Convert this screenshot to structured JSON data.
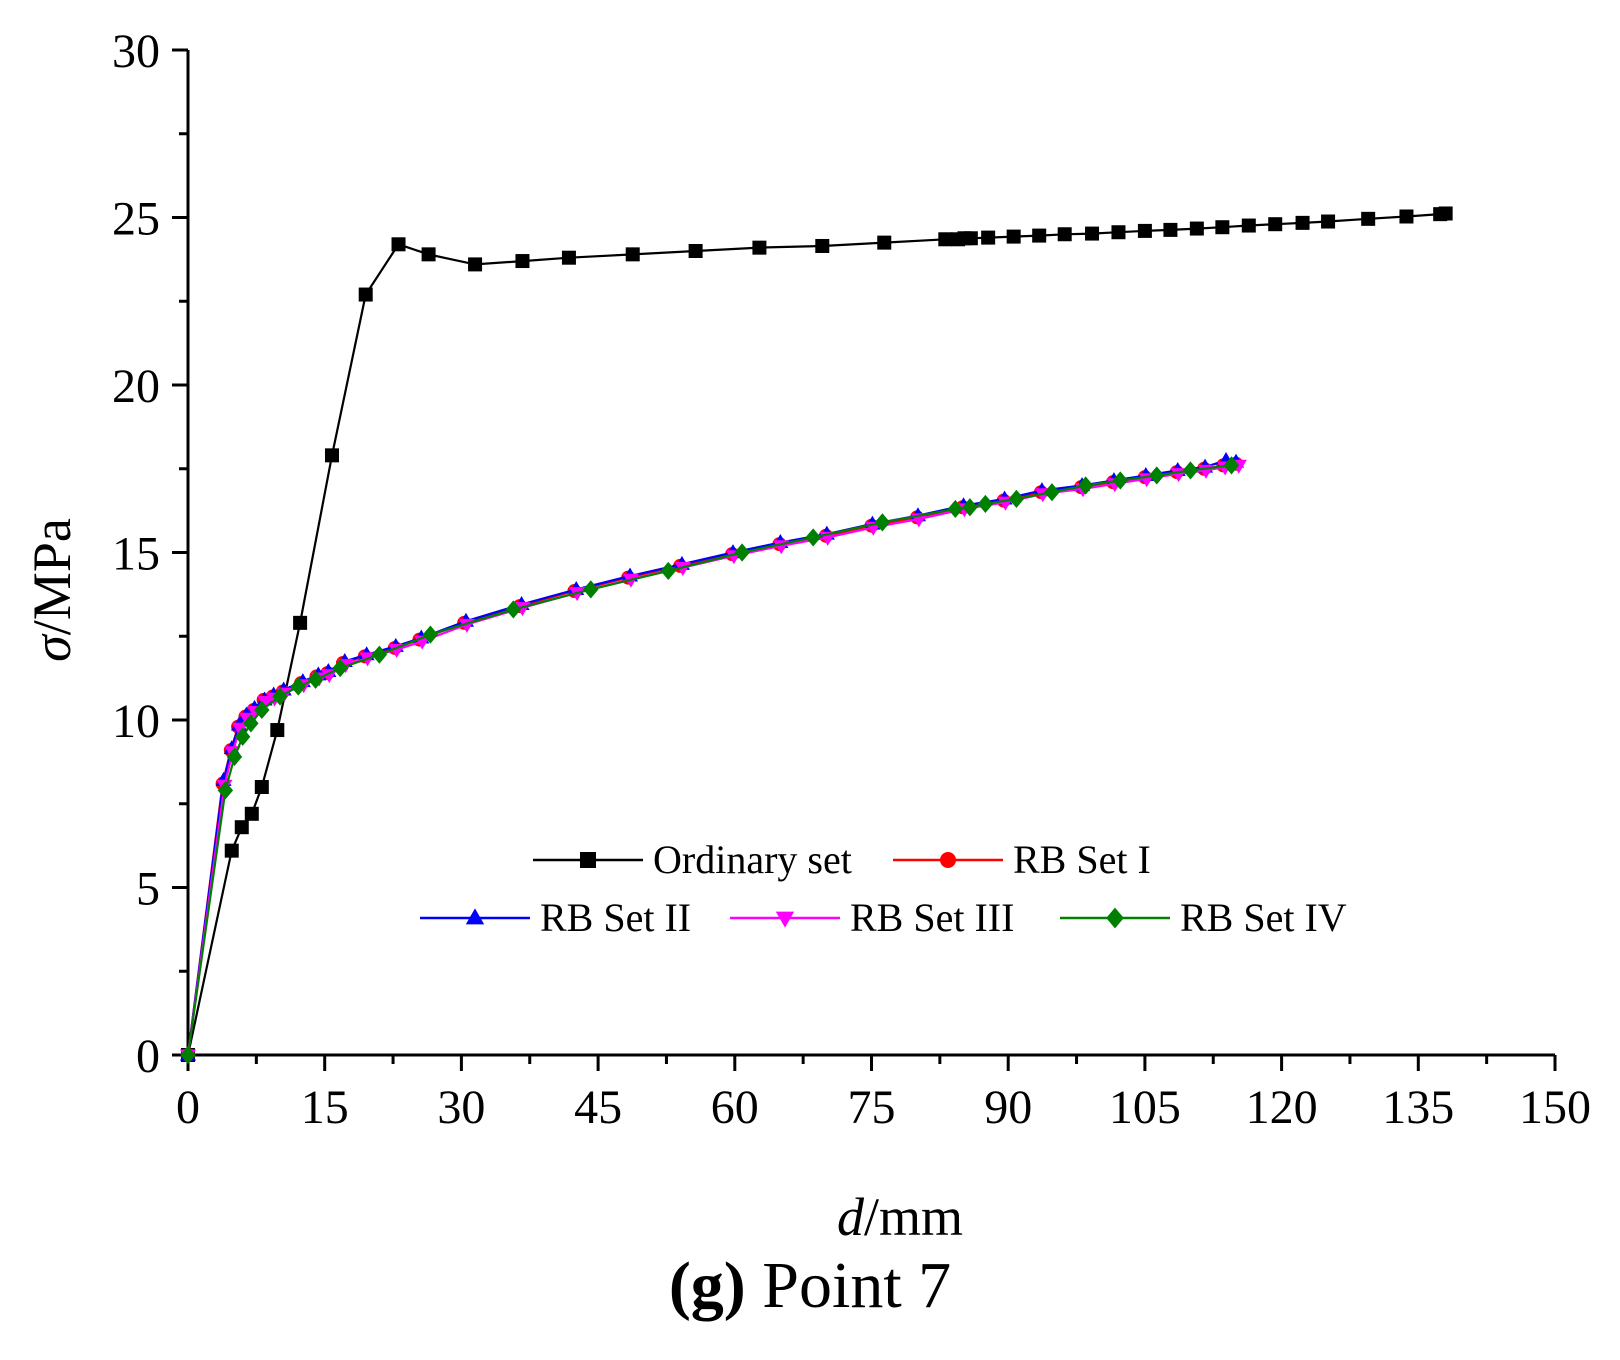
{
  "chart_data": {
    "type": "line",
    "title": "",
    "xlabel_italic": "d",
    "xlabel_unit": "/mm",
    "ylabel_italic": "σ",
    "ylabel_unit": "/MPa",
    "xlim": [
      0,
      150
    ],
    "ylim": [
      0,
      30
    ],
    "x_ticks": [
      0,
      15,
      30,
      45,
      60,
      75,
      90,
      105,
      120,
      135,
      150
    ],
    "y_ticks": [
      0,
      5,
      10,
      15,
      20,
      25,
      30
    ],
    "grid": false,
    "legend_position": "lower-right",
    "series": [
      {
        "name": "Ordinary set",
        "color": "#000000",
        "marker": "square",
        "x": [
          0,
          4.8,
          5.9,
          7.0,
          8.1,
          9.8,
          12.3,
          15.8,
          19.5,
          23.1,
          26.4,
          31.5,
          36.7,
          41.8,
          48.8,
          55.7,
          62.7,
          69.6,
          76.4,
          83.1,
          84.5,
          85.2,
          85.9,
          87.8,
          90.6,
          93.4,
          96.2,
          99.2,
          102.1,
          105.0,
          107.8,
          110.7,
          113.5,
          116.4,
          119.3,
          122.3,
          125.1,
          129.5,
          133.7,
          137.4,
          138.0
        ],
        "y": [
          0,
          6.1,
          6.8,
          7.2,
          8.0,
          9.7,
          12.9,
          17.9,
          22.7,
          24.2,
          23.9,
          23.6,
          23.7,
          23.8,
          23.9,
          24.0,
          24.1,
          24.15,
          24.25,
          24.35,
          24.35,
          24.38,
          24.38,
          24.4,
          24.43,
          24.46,
          24.5,
          24.52,
          24.56,
          24.6,
          24.63,
          24.67,
          24.71,
          24.76,
          24.8,
          24.84,
          24.88,
          24.96,
          25.03,
          25.1,
          25.12
        ]
      },
      {
        "name": "RB Set I",
        "color": "#ff0000",
        "marker": "circle",
        "x": [
          0,
          3.8,
          4.7,
          5.5,
          6.3,
          7.2,
          8.3,
          9.3,
          10.4,
          12.4,
          14.1,
          15.3,
          17.0,
          19.4,
          22.7,
          25.4,
          30.3,
          36.4,
          42.4,
          48.3,
          54.0,
          59.7,
          64.9,
          70.0,
          75.0,
          80.0,
          85.0,
          89.5,
          93.6,
          98.0,
          101.5,
          105.0,
          108.5,
          111.5,
          113.6,
          115.0
        ],
        "y": [
          0,
          8.1,
          9.1,
          9.8,
          10.1,
          10.3,
          10.6,
          10.7,
          10.85,
          11.1,
          11.3,
          11.4,
          11.7,
          11.9,
          12.15,
          12.4,
          12.9,
          13.4,
          13.85,
          14.25,
          14.6,
          14.95,
          15.25,
          15.5,
          15.8,
          16.05,
          16.35,
          16.55,
          16.8,
          16.95,
          17.1,
          17.25,
          17.4,
          17.5,
          17.6,
          17.65
        ]
      },
      {
        "name": "RB Set II",
        "color": "#0000ff",
        "marker": "triangle-up",
        "x": [
          0,
          3.9,
          4.8,
          5.6,
          6.4,
          7.3,
          8.4,
          9.4,
          10.5,
          12.6,
          14.3,
          15.4,
          17.2,
          19.6,
          22.8,
          25.6,
          30.5,
          36.6,
          42.6,
          48.5,
          54.2,
          59.8,
          65.0,
          70.1,
          75.1,
          80.1,
          85.1,
          89.6,
          93.7,
          98.1,
          101.6,
          105.1,
          108.6,
          111.6,
          113.9,
          115.0
        ],
        "y": [
          0,
          8.2,
          9.15,
          9.85,
          10.15,
          10.35,
          10.6,
          10.75,
          10.9,
          11.15,
          11.35,
          11.45,
          11.75,
          11.95,
          12.2,
          12.45,
          12.95,
          13.45,
          13.9,
          14.3,
          14.65,
          15.0,
          15.3,
          15.55,
          15.85,
          16.1,
          16.4,
          16.6,
          16.85,
          17.0,
          17.15,
          17.3,
          17.45,
          17.55,
          17.75,
          17.7
        ]
      },
      {
        "name": "RB Set III",
        "color": "#ff00ff",
        "marker": "triangle-down",
        "x": [
          0,
          4.0,
          4.9,
          5.7,
          6.5,
          7.4,
          8.5,
          9.5,
          10.6,
          12.7,
          14.4,
          15.5,
          17.3,
          19.7,
          22.9,
          25.7,
          30.6,
          36.7,
          42.7,
          48.6,
          54.3,
          59.9,
          65.1,
          70.2,
          75.2,
          80.2,
          85.2,
          89.7,
          93.8,
          98.2,
          101.7,
          105.2,
          108.7,
          111.7,
          113.8,
          115.3
        ],
        "y": [
          0,
          8.05,
          9.05,
          9.75,
          10.05,
          10.25,
          10.55,
          10.65,
          10.8,
          11.05,
          11.25,
          11.35,
          11.65,
          11.85,
          12.1,
          12.35,
          12.85,
          13.35,
          13.8,
          14.2,
          14.55,
          14.9,
          15.2,
          15.45,
          15.75,
          16.0,
          16.3,
          16.5,
          16.75,
          16.9,
          17.05,
          17.2,
          17.35,
          17.45,
          17.55,
          17.6
        ]
      },
      {
        "name": "RB Set IV",
        "color": "#008000",
        "marker": "diamond",
        "x": [
          0,
          4.1,
          5.1,
          6.0,
          6.9,
          8.1,
          10.1,
          12.1,
          14.0,
          16.7,
          21.0,
          26.6,
          35.7,
          44.2,
          52.7,
          60.8,
          68.6,
          76.2,
          84.2,
          85.8,
          87.5,
          90.9,
          94.8,
          98.5,
          102.3,
          106.3,
          110.0,
          114.5
        ],
        "y": [
          0,
          7.9,
          8.9,
          9.5,
          9.9,
          10.3,
          10.7,
          11.0,
          11.2,
          11.55,
          11.95,
          12.55,
          13.3,
          13.9,
          14.45,
          15.0,
          15.45,
          15.9,
          16.3,
          16.35,
          16.45,
          16.6,
          16.8,
          17.0,
          17.15,
          17.3,
          17.45,
          17.6
        ]
      }
    ]
  },
  "caption": {
    "label": "(g)",
    "text": "Point 7"
  }
}
